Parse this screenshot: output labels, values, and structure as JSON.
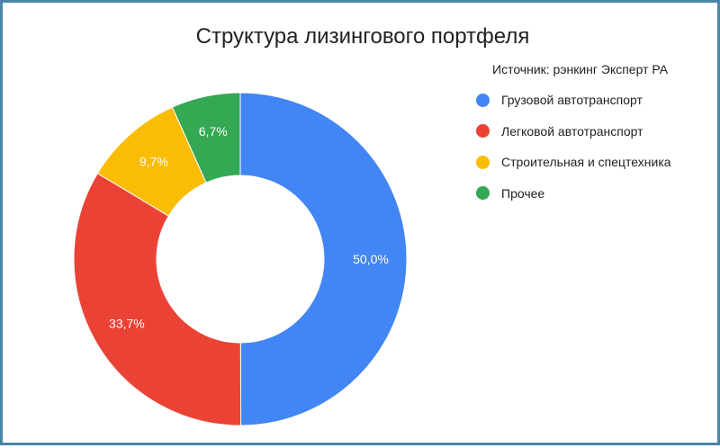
{
  "chart_data": {
    "type": "pie",
    "title": "Структура лизингового портфеля",
    "subtitle": "Источник: рэнкинг Эксперт РА",
    "legend_position": "right",
    "donut": true,
    "slices": [
      {
        "name": "Грузовой автотранспорт",
        "value": 50.0,
        "label": "50,0%",
        "color": "#4285f4"
      },
      {
        "name": "Легковой автотранспорт",
        "value": 33.7,
        "label": "33,7%",
        "color": "#ea4335"
      },
      {
        "name": "Строительная и спецтехника",
        "value": 9.7,
        "label": "9,7%",
        "color": "#fbbc04"
      },
      {
        "name": "Прочее",
        "value": 6.7,
        "label": "6,7%",
        "color": "#34a853"
      }
    ]
  }
}
